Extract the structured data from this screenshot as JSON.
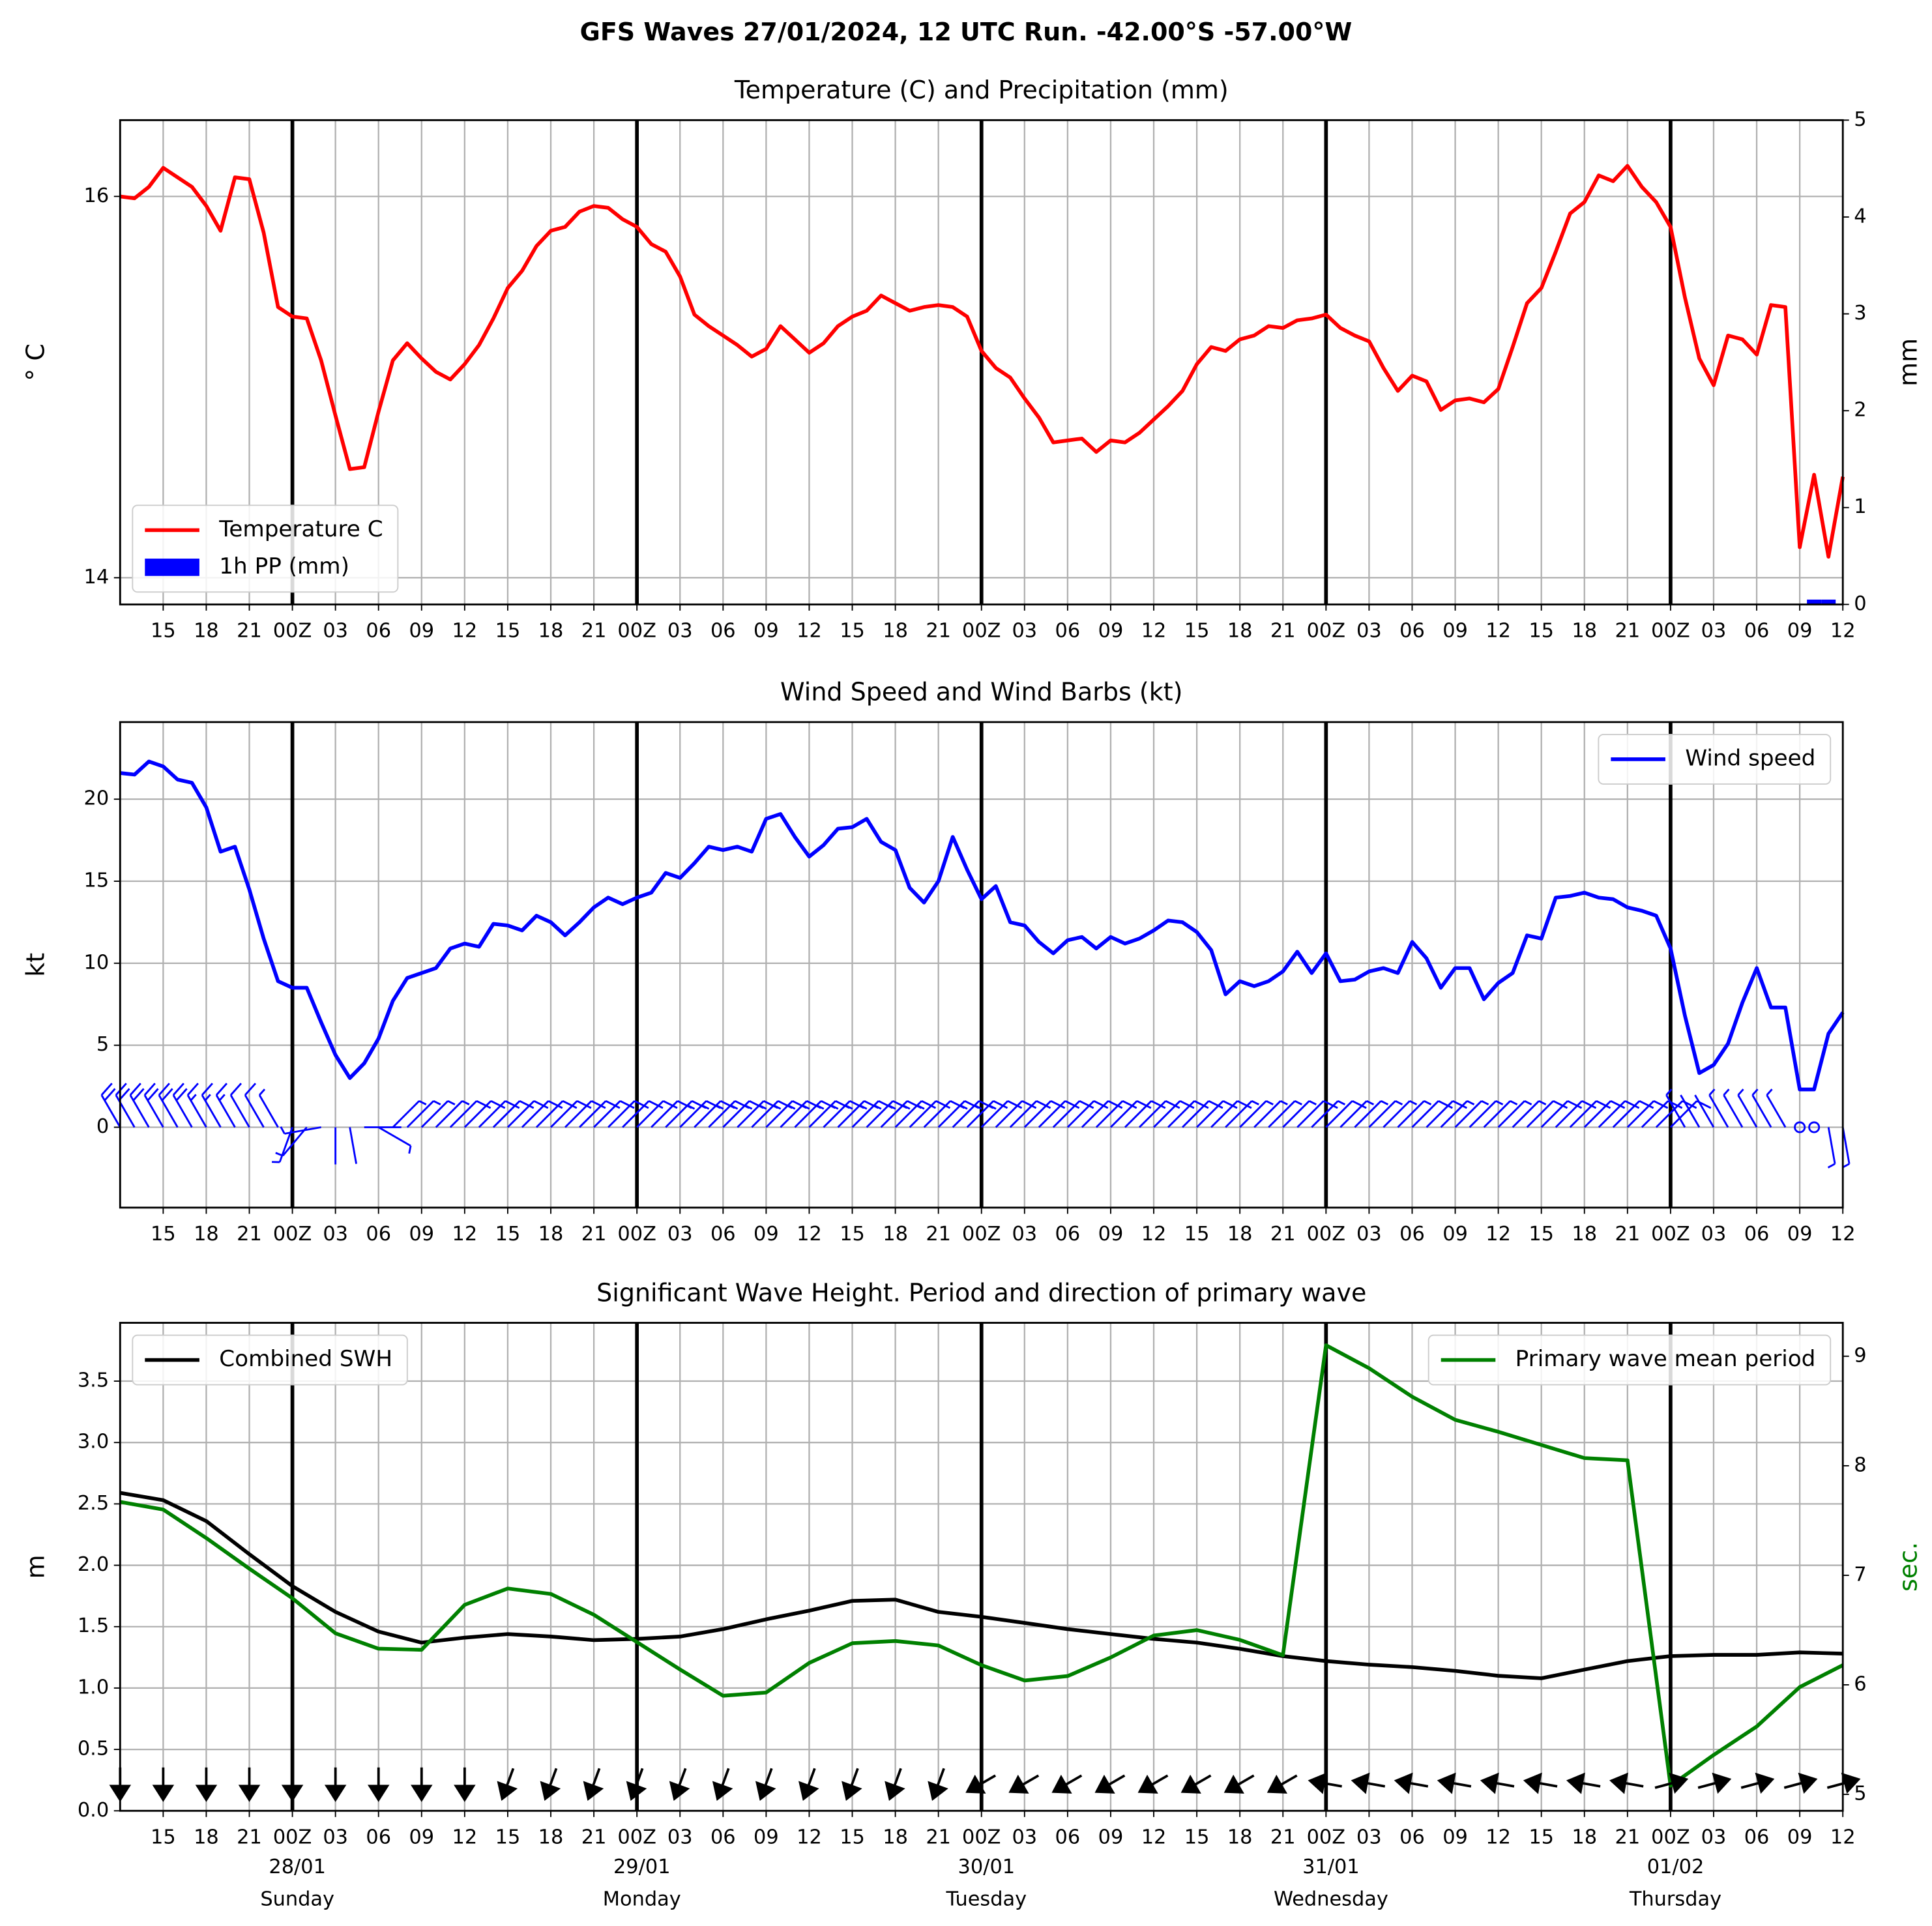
{
  "title": "GFS Waves 27/01/2024, 12 UTC Run. -42.00°S -57.00°W",
  "x_axis": {
    "xlim": [
      0,
      120
    ],
    "xticks": [
      {
        "value": 3,
        "label": "15"
      },
      {
        "value": 6,
        "label": "18"
      },
      {
        "value": 9,
        "label": "21"
      },
      {
        "value": 12,
        "label": "00Z"
      },
      {
        "value": 15,
        "label": "03"
      },
      {
        "value": 18,
        "label": "06"
      },
      {
        "value": 21,
        "label": "09"
      },
      {
        "value": 24,
        "label": "12"
      },
      {
        "value": 27,
        "label": "15"
      },
      {
        "value": 30,
        "label": "18"
      },
      {
        "value": 33,
        "label": "21"
      },
      {
        "value": 36,
        "label": "00Z"
      },
      {
        "value": 39,
        "label": "03"
      },
      {
        "value": 42,
        "label": "06"
      },
      {
        "value": 45,
        "label": "09"
      },
      {
        "value": 48,
        "label": "12"
      },
      {
        "value": 51,
        "label": "15"
      },
      {
        "value": 54,
        "label": "18"
      },
      {
        "value": 57,
        "label": "21"
      },
      {
        "value": 60,
        "label": "00Z"
      },
      {
        "value": 63,
        "label": "03"
      },
      {
        "value": 66,
        "label": "06"
      },
      {
        "value": 69,
        "label": "09"
      },
      {
        "value": 72,
        "label": "12"
      },
      {
        "value": 75,
        "label": "15"
      },
      {
        "value": 78,
        "label": "18"
      },
      {
        "value": 81,
        "label": "21"
      },
      {
        "value": 84,
        "label": "00Z"
      },
      {
        "value": 87,
        "label": "03"
      },
      {
        "value": 90,
        "label": "06"
      },
      {
        "value": 93,
        "label": "09"
      },
      {
        "value": 96,
        "label": "12"
      },
      {
        "value": 99,
        "label": "15"
      },
      {
        "value": 102,
        "label": "18"
      },
      {
        "value": 105,
        "label": "21"
      },
      {
        "value": 108,
        "label": "00Z"
      },
      {
        "value": 111,
        "label": "03"
      },
      {
        "value": 114,
        "label": "06"
      },
      {
        "value": 117,
        "label": "09"
      },
      {
        "value": 120,
        "label": "12"
      }
    ],
    "day_lines": [
      12,
      36,
      60,
      84,
      108
    ],
    "date_labels": [
      {
        "value": 12,
        "date": "28/01",
        "day": "Sunday"
      },
      {
        "value": 36,
        "date": "29/01",
        "day": "Monday"
      },
      {
        "value": 60,
        "date": "30/01",
        "day": "Tuesday"
      },
      {
        "value": 84,
        "date": "31/01",
        "day": "Wednesday"
      },
      {
        "value": 108,
        "date": "01/02",
        "day": "Thursday"
      }
    ]
  },
  "chart_data": [
    {
      "type": "line",
      "title": "Temperature (C) and Precipitation (mm)",
      "ylabel": "° C",
      "y2label": "mm",
      "ylim": [
        13.86,
        16.4
      ],
      "yticks": [
        14,
        16
      ],
      "y2lim": [
        0,
        5
      ],
      "y2ticks": [
        0,
        1,
        2,
        3,
        4,
        5
      ],
      "grid": true,
      "legend": "lower left",
      "x": [
        0,
        1,
        2,
        3,
        4,
        5,
        6,
        7,
        8,
        9,
        10,
        11,
        12,
        13,
        14,
        15,
        16,
        17,
        18,
        19,
        20,
        21,
        22,
        23,
        24,
        25,
        26,
        27,
        28,
        29,
        30,
        31,
        32,
        33,
        34,
        35,
        36,
        37,
        38,
        39,
        40,
        41,
        42,
        43,
        44,
        45,
        46,
        47,
        48,
        49,
        50,
        51,
        52,
        53,
        54,
        55,
        56,
        57,
        58,
        59,
        60,
        61,
        62,
        63,
        64,
        65,
        66,
        67,
        68,
        69,
        70,
        71,
        72,
        73,
        74,
        75,
        76,
        77,
        78,
        79,
        80,
        81,
        82,
        83,
        84,
        85,
        86,
        87,
        88,
        89,
        90,
        91,
        92,
        93,
        94,
        95,
        96,
        97,
        98,
        99,
        100,
        101,
        102,
        103,
        104,
        105,
        106,
        107,
        108,
        109,
        110,
        111,
        112,
        113,
        114,
        115,
        116,
        117,
        118,
        119,
        120
      ],
      "series": [
        {
          "name": "Temperature C",
          "color": "#ff0000",
          "values": [
            16.0,
            15.99,
            16.05,
            16.15,
            16.1,
            16.05,
            15.95,
            15.82,
            16.1,
            16.09,
            15.81,
            15.42,
            15.37,
            15.36,
            15.14,
            14.85,
            14.57,
            14.58,
            14.87,
            15.14,
            15.23,
            15.15,
            15.08,
            15.04,
            15.12,
            15.22,
            15.36,
            15.52,
            15.61,
            15.74,
            15.82,
            15.84,
            15.92,
            15.95,
            15.94,
            15.88,
            15.84,
            15.75,
            15.71,
            15.58,
            15.38,
            15.32,
            15.27,
            15.22,
            15.16,
            15.2,
            15.32,
            15.25,
            15.18,
            15.23,
            15.32,
            15.37,
            15.4,
            15.48,
            15.44,
            15.4,
            15.42,
            15.43,
            15.42,
            15.37,
            15.19,
            15.1,
            15.05,
            14.94,
            14.84,
            14.71,
            14.72,
            14.73,
            14.66,
            14.72,
            14.71,
            14.76,
            14.83,
            14.9,
            14.98,
            15.12,
            15.21,
            15.19,
            15.25,
            15.27,
            15.32,
            15.31,
            15.35,
            15.36,
            15.38,
            15.31,
            15.27,
            15.24,
            15.1,
            14.98,
            15.06,
            15.03,
            14.88,
            14.93,
            14.94,
            14.92,
            14.99,
            15.21,
            15.44,
            15.52,
            15.71,
            15.91,
            15.97,
            16.11,
            16.08,
            16.16,
            16.05,
            15.97,
            15.84,
            15.47,
            15.15,
            15.01,
            15.27,
            15.25,
            15.17,
            15.43,
            15.42,
            14.16,
            14.54,
            14.11,
            14.53
          ]
        },
        {
          "name": "1h PP (mm)",
          "type": "bar",
          "color": "#0000ff",
          "axis": "y2",
          "x": [
            118,
            119
          ],
          "values": [
            0.05,
            0.05
          ]
        }
      ]
    },
    {
      "type": "line",
      "title": "Wind Speed and Wind Barbs (kt)",
      "ylabel": "kt",
      "ylim": [
        -4.9,
        24.7
      ],
      "yticks": [
        0,
        5,
        10,
        15,
        20
      ],
      "grid": true,
      "legend": "upper right",
      "x": [
        0,
        1,
        2,
        3,
        4,
        5,
        6,
        7,
        8,
        9,
        10,
        11,
        12,
        13,
        14,
        15,
        16,
        17,
        18,
        19,
        20,
        21,
        22,
        23,
        24,
        25,
        26,
        27,
        28,
        29,
        30,
        31,
        32,
        33,
        34,
        35,
        36,
        37,
        38,
        39,
        40,
        41,
        42,
        43,
        44,
        45,
        46,
        47,
        48,
        49,
        50,
        51,
        52,
        53,
        54,
        55,
        56,
        57,
        58,
        59,
        60,
        61,
        62,
        63,
        64,
        65,
        66,
        67,
        68,
        69,
        70,
        71,
        72,
        73,
        74,
        75,
        76,
        77,
        78,
        79,
        80,
        81,
        82,
        83,
        84,
        85,
        86,
        87,
        88,
        89,
        90,
        91,
        92,
        93,
        94,
        95,
        96,
        97,
        98,
        99,
        100,
        101,
        102,
        103,
        104,
        105,
        106,
        107,
        108,
        109,
        110,
        111,
        112,
        113,
        114,
        115,
        116,
        117,
        118,
        119,
        120
      ],
      "series": [
        {
          "name": "Wind speed",
          "color": "#0000ff",
          "values": [
            21.6,
            21.5,
            22.3,
            22.0,
            21.2,
            21.0,
            19.5,
            16.8,
            17.1,
            14.5,
            11.5,
            8.9,
            8.5,
            8.5,
            6.4,
            4.4,
            3.0,
            3.9,
            5.4,
            7.7,
            9.1,
            9.4,
            9.7,
            10.9,
            11.2,
            11.0,
            12.4,
            12.3,
            12.0,
            12.9,
            12.5,
            11.7,
            12.5,
            13.4,
            14.0,
            13.6,
            14.0,
            14.3,
            15.5,
            15.2,
            16.1,
            17.1,
            16.9,
            17.1,
            16.8,
            18.8,
            19.1,
            17.7,
            16.5,
            17.2,
            18.2,
            18.3,
            18.8,
            17.4,
            16.9,
            14.6,
            13.7,
            15.0,
            17.7,
            15.7,
            13.9,
            14.7,
            12.5,
            12.3,
            11.3,
            10.6,
            11.4,
            11.6,
            10.9,
            11.6,
            11.2,
            11.5,
            12.0,
            12.6,
            12.5,
            11.9,
            10.8,
            8.1,
            8.9,
            8.6,
            8.9,
            9.5,
            10.7,
            9.4,
            10.6,
            8.9,
            9.0,
            9.5,
            9.7,
            9.4,
            11.3,
            10.3,
            8.5,
            9.7,
            9.7,
            7.8,
            8.8,
            9.4,
            11.7,
            11.5,
            14.0,
            14.1,
            14.3,
            14.0,
            13.9,
            13.4,
            13.2,
            12.9,
            10.9,
            6.8,
            3.3,
            3.8,
            5.1,
            7.6,
            9.7,
            7.3,
            7.3,
            2.3,
            2.3,
            5.7,
            7.0
          ]
        }
      ],
      "barbs": {
        "color": "#0000ff",
        "direction": [
          330,
          330,
          330,
          330,
          330,
          330,
          330,
          330,
          330,
          330,
          330,
          330,
          200,
          220,
          260,
          180,
          170,
          90,
          120,
          45,
          45,
          45,
          45,
          45,
          45,
          45,
          45,
          45,
          45,
          45,
          45,
          45,
          45,
          45,
          45,
          45,
          45,
          45,
          45,
          45,
          45,
          45,
          45,
          45,
          45,
          45,
          45,
          45,
          45,
          45,
          45,
          45,
          45,
          45,
          45,
          45,
          45,
          45,
          45,
          45,
          45,
          45,
          45,
          45,
          45,
          45,
          45,
          45,
          45,
          45,
          45,
          45,
          45,
          45,
          45,
          45,
          45,
          45,
          45,
          45,
          45,
          45,
          45,
          45,
          45,
          45,
          45,
          45,
          45,
          45,
          45,
          45,
          45,
          45,
          45,
          45,
          45,
          45,
          45,
          45,
          45,
          45,
          45,
          45,
          45,
          45,
          45,
          45,
          45,
          330,
          330,
          330,
          330,
          330,
          330,
          330,
          330,
          0,
          0,
          170,
          170
        ]
      }
    },
    {
      "type": "line",
      "title": "Significant Wave Height. Period and direction of primary wave",
      "ylabel": "m",
      "y2label": "sec.",
      "y2color": "#008000",
      "ylim": [
        0,
        3.975
      ],
      "yticks": [
        {
          "value": 0,
          "label": "0.0"
        },
        0.5,
        {
          "value": 1,
          "label": "1.0"
        },
        1.5,
        {
          "value": 2,
          "label": "2.0"
        },
        2.5,
        {
          "value": 3,
          "label": "3.0"
        },
        3.5
      ],
      "y2lim": [
        4.85,
        9.305
      ],
      "y2ticks": [
        5,
        6,
        7,
        8,
        9
      ],
      "grid": true,
      "x": [
        0,
        3,
        6,
        9,
        12,
        15,
        18,
        21,
        24,
        27,
        30,
        33,
        36,
        39,
        42,
        45,
        48,
        51,
        54,
        57,
        60,
        63,
        66,
        69,
        72,
        75,
        78,
        81,
        84,
        87,
        90,
        93,
        96,
        99,
        102,
        105,
        108,
        111,
        114,
        117,
        120
      ],
      "series": [
        {
          "name": "Combined SWH",
          "color": "#000000",
          "legend": "upper left",
          "values": [
            2.59,
            2.53,
            2.36,
            2.09,
            1.83,
            1.62,
            1.46,
            1.37,
            1.41,
            1.44,
            1.42,
            1.39,
            1.4,
            1.42,
            1.48,
            1.56,
            1.63,
            1.71,
            1.72,
            1.62,
            1.58,
            1.53,
            1.48,
            1.44,
            1.4,
            1.37,
            1.32,
            1.26,
            1.22,
            1.19,
            1.17,
            1.14,
            1.1,
            1.08,
            1.15,
            1.22,
            1.26,
            1.27,
            1.27,
            1.29,
            1.28
          ]
        },
        {
          "name": "Primary wave mean period",
          "color": "#008000",
          "axis": "y2",
          "legend": "upper right",
          "values": [
            7.67,
            7.6,
            7.34,
            7.06,
            6.79,
            6.47,
            6.33,
            6.32,
            6.73,
            6.88,
            6.83,
            6.64,
            6.39,
            6.14,
            5.9,
            5.93,
            6.2,
            6.38,
            6.4,
            6.36,
            6.18,
            6.04,
            6.08,
            6.25,
            6.45,
            6.5,
            6.41,
            6.27,
            9.1,
            8.89,
            8.63,
            8.42,
            8.31,
            8.19,
            8.07,
            8.05,
            5.08,
            5.36,
            5.62,
            5.98,
            6.18
          ]
        }
      ],
      "arrows": {
        "color": "#000000",
        "direction": [
          0,
          0,
          0,
          0,
          0,
          0,
          0,
          0,
          0,
          20,
          20,
          20,
          20,
          20,
          20,
          20,
          20,
          20,
          20,
          20,
          60,
          60,
          60,
          60,
          60,
          60,
          60,
          60,
          100,
          100,
          100,
          100,
          100,
          100,
          100,
          100,
          255,
          255,
          255,
          255,
          255
        ]
      }
    }
  ]
}
